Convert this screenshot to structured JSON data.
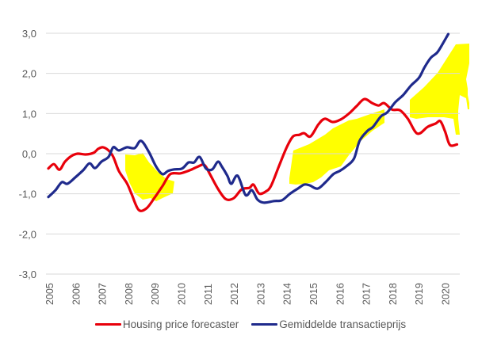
{
  "chart_data": {
    "type": "line",
    "title": "",
    "xlabel": "",
    "ylabel": "",
    "ylim": [
      -3.0,
      3.0
    ],
    "xlim": [
      2005,
      2020.55
    ],
    "yticks": [
      3.0,
      2.0,
      1.0,
      0.0,
      -1.0,
      -2.0,
      -3.0
    ],
    "ytick_labels": [
      "3,0",
      "2,0",
      "1,0",
      "0,0",
      "-1,0",
      "-2,0",
      "-3,0"
    ],
    "xtick_labels": [
      "2005",
      "2006",
      "2007",
      "2008",
      "2009",
      "2010",
      "2011",
      "2012",
      "2013",
      "2014",
      "2015",
      "2016",
      "2017",
      "2018",
      "2019",
      "2020"
    ],
    "grid": true,
    "legend_position": "bottom",
    "annotation": "yellow highlighter marks over 2008-2009 and 2014-2020",
    "series": [
      {
        "name": "Housing price forecaster",
        "color": "#e8000b",
        "x": [
          2004.94,
          2005.15,
          2005.36,
          2005.57,
          2005.81,
          2006.05,
          2006.35,
          2006.65,
          2006.83,
          2007.01,
          2007.22,
          2007.4,
          2007.61,
          2007.91,
          2008.09,
          2008.36,
          2008.66,
          2008.96,
          2009.26,
          2009.56,
          2009.95,
          2010.31,
          2010.61,
          2010.85,
          2011.06,
          2011.36,
          2011.66,
          2011.96,
          2012.26,
          2012.56,
          2012.71,
          2012.92,
          2013.16,
          2013.37,
          2013.67,
          2013.97,
          2014.21,
          2014.45,
          2014.63,
          2014.87,
          2015.17,
          2015.41,
          2015.71,
          2016.01,
          2016.31,
          2016.61,
          2016.91,
          2017.21,
          2017.45,
          2017.66,
          2017.96,
          2018.26,
          2018.56,
          2018.92,
          2019.31,
          2019.61,
          2019.79,
          2019.97,
          2020.15,
          2020.42
        ],
        "values": [
          -0.37,
          -0.26,
          -0.4,
          -0.2,
          -0.06,
          0.0,
          -0.02,
          0.02,
          0.12,
          0.16,
          0.08,
          -0.08,
          -0.43,
          -0.73,
          -1.0,
          -1.4,
          -1.36,
          -1.1,
          -0.81,
          -0.51,
          -0.49,
          -0.41,
          -0.32,
          -0.28,
          -0.51,
          -0.87,
          -1.13,
          -1.11,
          -0.89,
          -0.85,
          -0.77,
          -0.99,
          -0.95,
          -0.81,
          -0.32,
          0.16,
          0.43,
          0.47,
          0.51,
          0.43,
          0.73,
          0.87,
          0.79,
          0.85,
          0.99,
          1.18,
          1.36,
          1.26,
          1.2,
          1.26,
          1.1,
          1.08,
          0.87,
          0.5,
          0.67,
          0.75,
          0.81,
          0.55,
          0.22,
          0.23
        ]
      },
      {
        "name": "Gemiddelde transactieprijs",
        "color": "#1f2a8c",
        "x": [
          2004.94,
          2005.21,
          2005.45,
          2005.66,
          2005.96,
          2006.26,
          2006.5,
          2006.71,
          2006.95,
          2007.22,
          2007.4,
          2007.61,
          2007.91,
          2008.21,
          2008.45,
          2008.75,
          2009.02,
          2009.26,
          2009.47,
          2009.71,
          2010.01,
          2010.25,
          2010.46,
          2010.67,
          2010.91,
          2011.15,
          2011.36,
          2011.51,
          2011.72,
          2011.87,
          2012.11,
          2012.41,
          2012.65,
          2012.86,
          2013.1,
          2013.49,
          2013.79,
          2014.09,
          2014.39,
          2014.63,
          2014.84,
          2015.14,
          2015.44,
          2015.74,
          2015.98,
          2016.22,
          2016.52,
          2016.73,
          2017.03,
          2017.24,
          2017.54,
          2017.78,
          2018.08,
          2018.38,
          2018.68,
          2018.98,
          2019.19,
          2019.43,
          2019.67,
          2019.88,
          2020.09
        ],
        "values": [
          -1.08,
          -0.91,
          -0.71,
          -0.75,
          -0.59,
          -0.41,
          -0.24,
          -0.36,
          -0.2,
          -0.08,
          0.16,
          0.08,
          0.16,
          0.14,
          0.32,
          0.04,
          -0.32,
          -0.51,
          -0.43,
          -0.39,
          -0.37,
          -0.22,
          -0.22,
          -0.08,
          -0.37,
          -0.39,
          -0.2,
          -0.32,
          -0.55,
          -0.75,
          -0.55,
          -1.03,
          -0.91,
          -1.14,
          -1.22,
          -1.18,
          -1.16,
          -1.0,
          -0.87,
          -0.77,
          -0.79,
          -0.87,
          -0.71,
          -0.51,
          -0.43,
          -0.32,
          -0.12,
          0.32,
          0.57,
          0.67,
          0.93,
          1.03,
          1.28,
          1.46,
          1.7,
          1.89,
          2.15,
          2.39,
          2.52,
          2.74,
          2.98
        ]
      }
    ]
  }
}
